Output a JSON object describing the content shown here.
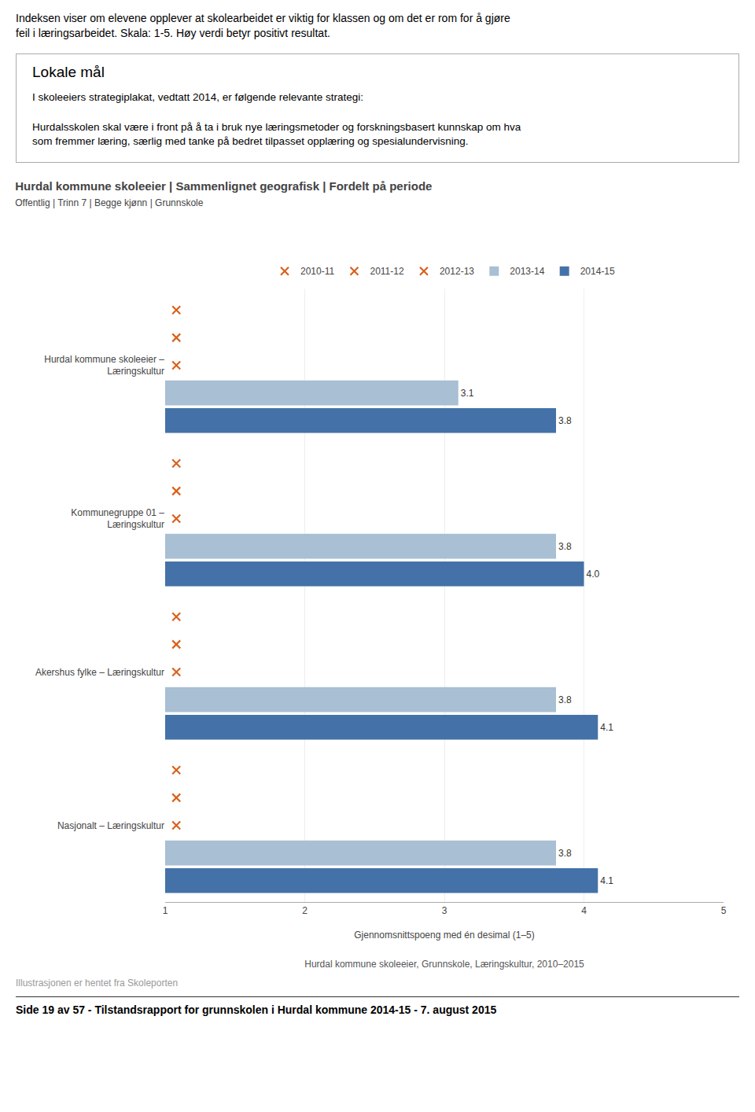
{
  "page_header": "Indeksen viser om elevene opplever at skolearbeidet er viktig for klassen og om det er rom for å gjøre\nfeil i læringsarbeidet. Skala: 1-5. Høy verdi betyr positivt resultat.",
  "section_title": "Lokale mål",
  "section_text": "I skoleeiers strategiplakat, vedtatt 2014, er følgende relevante strategi:\n\nHurdalsskolen skal være i front på å ta i bruk nye læringsmetoder og forskningsbasert kunnskap om hva\nsom fremmer læring, særlig med tanke på bedret tilpasset opplæring og spesialundervisning.",
  "footer_note": "Illustrasjonen er hentet fra Skoleporten",
  "page_footer": "Side 19 av 57 - Tilstandsrapport for grunnskolen i Hurdal kommune 2014-15 - 7. august 2015",
  "chart_data": {
    "type": "bar",
    "orientation": "horizontal",
    "title": "Hurdal kommune skoleeier | Sammenlignet geografisk | Fordelt på periode",
    "subtitle": "Offentlig | Trinn 7 | Begge kjønn | Grunnskole",
    "caption": "Hurdal kommune skoleeier, Grunnskole, Læringskultur, 2010–2015",
    "xlabel": "Gjennomsnittspoeng med én desimal (1–5)",
    "categories": [
      "Hurdal kommune skoleeier –\nLæringskultur",
      "Kommunegruppe 01 –\nLæringskultur",
      "Akershus fylke – Læringskultur",
      "Nasjonalt – Læringskultur"
    ],
    "series": [
      {
        "name": "2010-11",
        "type": "scatter",
        "marker": "x",
        "color": "#d9611c",
        "values": [
          1.08,
          1.08,
          1.08,
          1.08
        ]
      },
      {
        "name": "2011-12",
        "type": "scatter",
        "marker": "x",
        "color": "#d9611c",
        "values": [
          1.08,
          1.08,
          1.08,
          1.08
        ]
      },
      {
        "name": "2012-13",
        "type": "scatter",
        "marker": "x",
        "color": "#d9611c",
        "values": [
          1.08,
          1.08,
          1.08,
          1.08
        ]
      },
      {
        "name": "2013-14",
        "type": "bar",
        "color": "#a8bfd4",
        "data_labels": true,
        "values": [
          3.1,
          3.8,
          3.8,
          3.8
        ],
        "value_labels": [
          "3.1",
          "3.8",
          "3.8",
          "3.8"
        ]
      },
      {
        "name": "2014-15",
        "type": "bar",
        "color": "#4472a8",
        "data_labels": true,
        "values": [
          3.8,
          4.0,
          4.1,
          4.1
        ],
        "value_labels": [
          "3.8",
          "4.0",
          "4.1",
          "4.1"
        ]
      }
    ],
    "xlim": [
      1,
      5
    ],
    "xticks": [
      1,
      2,
      3,
      4,
      5
    ],
    "grid": true,
    "legend": "top"
  }
}
